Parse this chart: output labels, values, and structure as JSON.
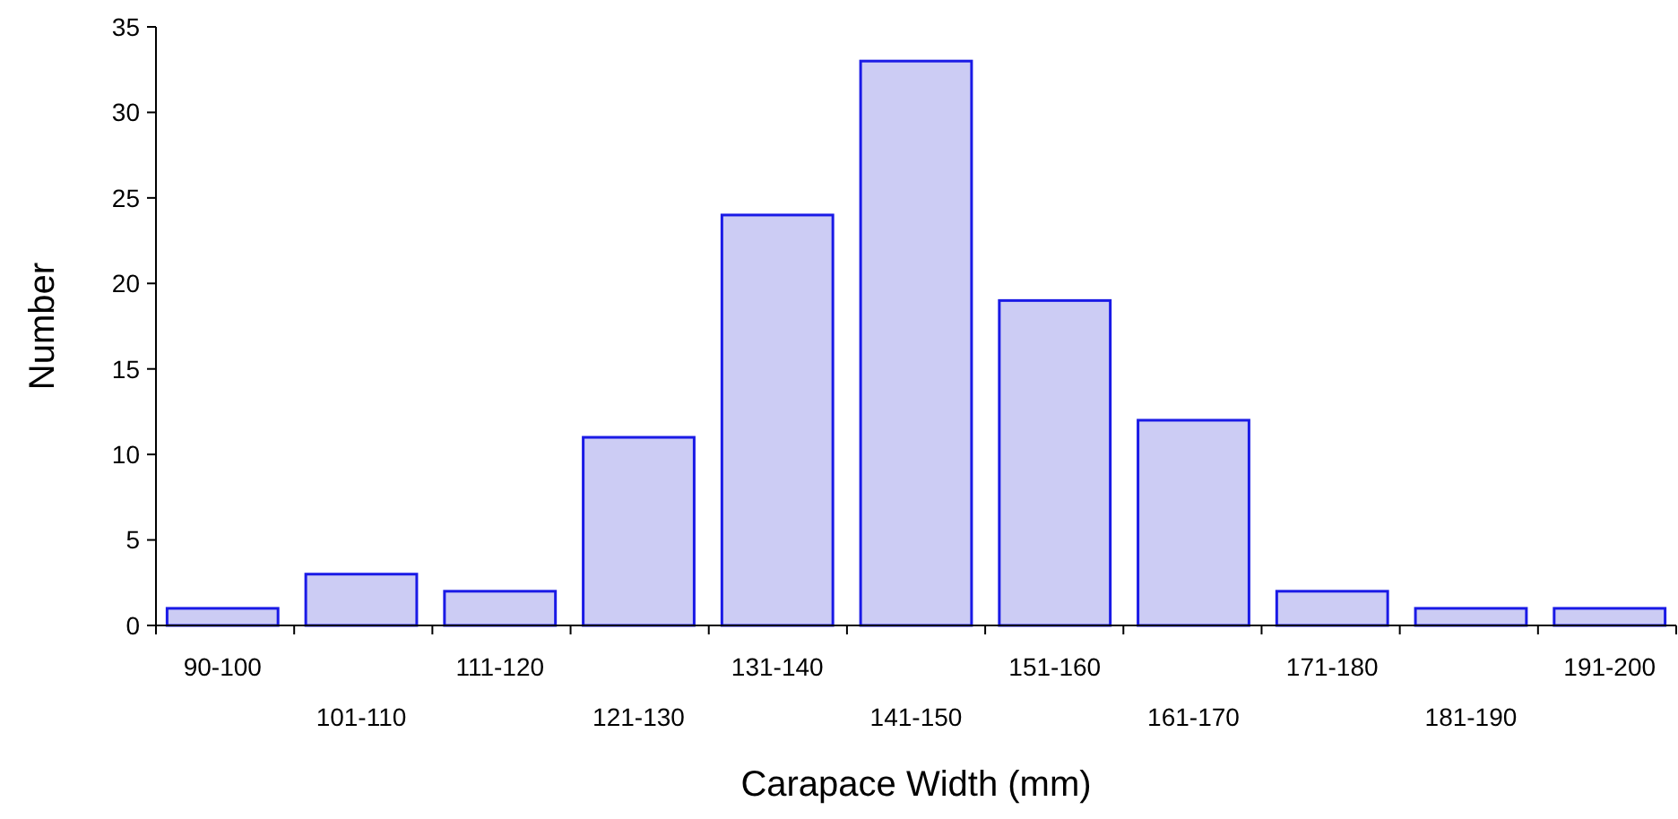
{
  "chart_data": {
    "type": "bar",
    "xlabel": "Carapace Width (mm)",
    "ylabel": "Number",
    "categories": [
      "90-100",
      "101-110",
      "111-120",
      "121-130",
      "131-140",
      "141-150",
      "151-160",
      "161-170",
      "171-180",
      "181-190",
      "191-200"
    ],
    "values": [
      1,
      3,
      2,
      11,
      24,
      33,
      19,
      12,
      2,
      1,
      1
    ],
    "color": "#ccccf4",
    "ylim": [
      0,
      35
    ],
    "yticks": [
      0,
      5,
      10,
      15,
      20,
      25,
      30,
      35
    ],
    "grid": false
  }
}
